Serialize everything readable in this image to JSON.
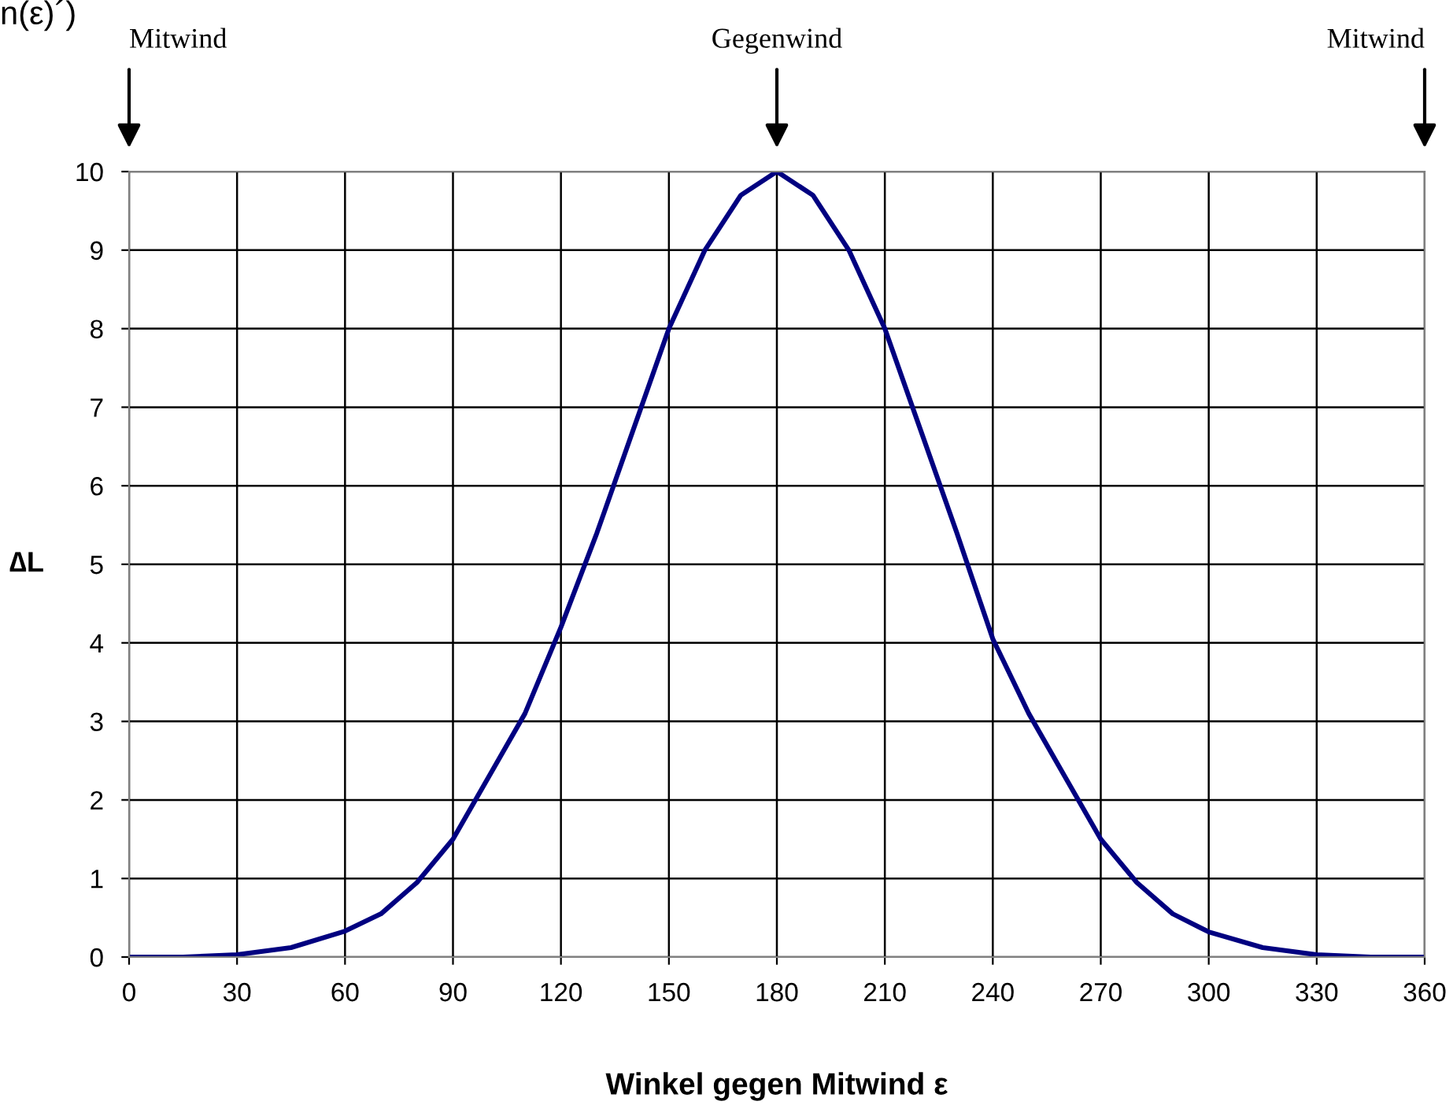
{
  "chart_data": {
    "type": "line",
    "xlabel": "Winkel gegen Mitwind ε",
    "ylabel": "∆L",
    "x": [
      0,
      15,
      30,
      45,
      60,
      70,
      80,
      90,
      100,
      110,
      120,
      130,
      140,
      150,
      160,
      170,
      180,
      190,
      200,
      210,
      220,
      230,
      240,
      250,
      260,
      270,
      280,
      290,
      300,
      315,
      330,
      345,
      360
    ],
    "series": [
      {
        "color": "#000080",
        "values": [
          0,
          0,
          0.03,
          0.12,
          0.33,
          0.55,
          0.95,
          1.5,
          2.3,
          3.1,
          4.2,
          5.4,
          6.7,
          8.0,
          9.0,
          9.7,
          10,
          9.7,
          9.0,
          8.0,
          6.7,
          5.4,
          4.05,
          3.1,
          2.3,
          1.5,
          0.95,
          0.55,
          0.32,
          0.12,
          0.03,
          0,
          0
        ]
      }
    ],
    "xlim": [
      0,
      360
    ],
    "xticks": [
      0,
      30,
      60,
      90,
      120,
      150,
      180,
      210,
      240,
      270,
      300,
      330,
      360
    ],
    "ylim": [
      0,
      10
    ],
    "yticks": [
      0,
      1,
      2,
      3,
      4,
      5,
      6,
      7,
      8,
      9,
      10
    ],
    "grid": true,
    "marker": "none",
    "line_style": "solid",
    "annotations": [
      "n(ε)´)",
      "Mitwind",
      "Gegenwind",
      "Mitwind"
    ]
  }
}
